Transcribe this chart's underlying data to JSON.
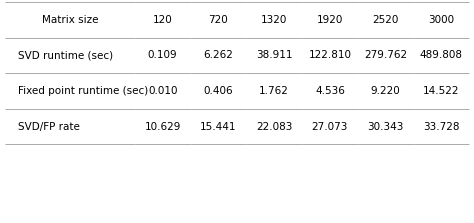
{
  "columns": [
    "Matrix size",
    "120",
    "720",
    "1320",
    "1920",
    "2520",
    "3000"
  ],
  "rows": [
    [
      "SVD runtime (sec)",
      "0.109",
      "6.262",
      "38.911",
      "122.810",
      "279.762",
      "489.808"
    ],
    [
      "Fixed point runtime (sec)",
      "0.010",
      "0.406",
      "1.762",
      "4.536",
      "9.220",
      "14.522"
    ],
    [
      "SVD/FP rate",
      "10.629",
      "15.441",
      "22.083",
      "27.073",
      "30.343",
      "33.728"
    ]
  ],
  "header_color": "#ffffff",
  "row_colors": [
    "#ffffff",
    "#ffffff",
    "#ffffff"
  ],
  "edge_color": "#aaaaaa",
  "font_size": 7.5,
  "background_color": "#ffffff"
}
